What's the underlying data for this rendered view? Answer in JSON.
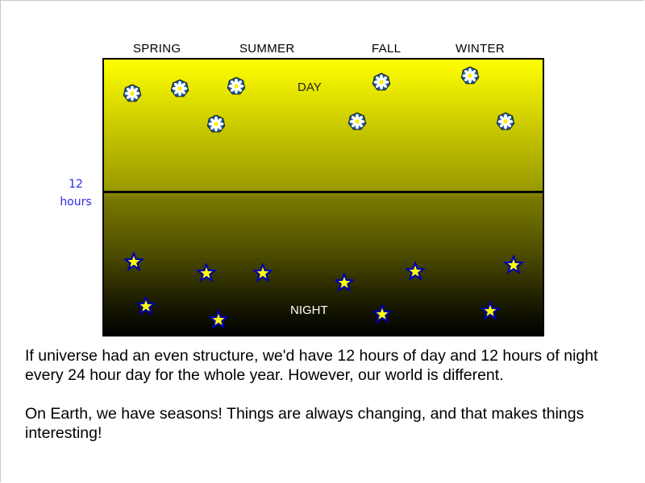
{
  "seasons": [
    "SPRING",
    "SUMMER",
    "FALL",
    "WINTER"
  ],
  "diagram": {
    "day_label": "DAY",
    "night_label": "NIGHT",
    "axis_label_line1": "12",
    "axis_label_line2": "hours",
    "day_icon": "flower-icon",
    "night_icon": "star-icon",
    "colors": {
      "day_top": "#ffff00",
      "night_bottom": "#000000",
      "star_fill": "#ffff00",
      "star_stroke": "#0000aa",
      "flower_petal_bg": "#1a5c9a",
      "axis_label": "#2a2af0"
    }
  },
  "paragraphs": [
    "If universe had an even structure, we'd have 12 hours of day and 12 hours of night every 24 hour day for the whole year. However, our world is different.",
    "On Earth, we have seasons! Things are always changing, and that makes things interesting!"
  ]
}
